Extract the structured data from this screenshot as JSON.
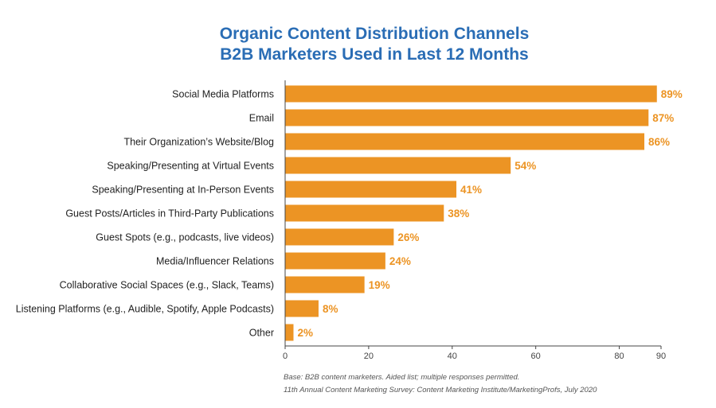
{
  "title_line1": "Organic Content Distribution Channels",
  "title_line2": "B2B Marketers Used in Last 12 Months",
  "footnote1": "Base: B2B content marketers. Aided list; multiple responses permitted.",
  "footnote2": "11th Annual Content Marketing Survey: Content Marketing Institute/MarketingProfs, July 2020",
  "bar_color": "#ec9424",
  "label_color": "#ec9424",
  "chart_data": {
    "type": "bar",
    "orientation": "horizontal",
    "categories": [
      "Social Media Platforms",
      "Email",
      "Their Organization’s Website/Blog",
      "Speaking/Presenting at Virtual Events",
      "Speaking/Presenting at In-Person Events",
      "Guest Posts/Articles in Third-Party Publications",
      "Guest Spots (e.g., podcasts, live videos)",
      "Media/Influencer Relations",
      "Collaborative Social Spaces (e.g., Slack, Teams)",
      "Listening Platforms (e.g., Audible, Spotify, Apple Podcasts)",
      "Other"
    ],
    "values": [
      89,
      87,
      86,
      54,
      41,
      38,
      26,
      24,
      19,
      8,
      2
    ],
    "data_labels": [
      "89%",
      "87%",
      "86%",
      "54%",
      "41%",
      "38%",
      "26%",
      "24%",
      "19%",
      "8%",
      "2%"
    ],
    "xlim": [
      0,
      90
    ],
    "xticks": [
      0,
      20,
      40,
      60,
      80,
      90
    ],
    "title": "Organic Content Distribution Channels B2B Marketers Used in Last 12 Months",
    "xlabel": "",
    "ylabel": "",
    "grid": false,
    "legend": "none"
  }
}
